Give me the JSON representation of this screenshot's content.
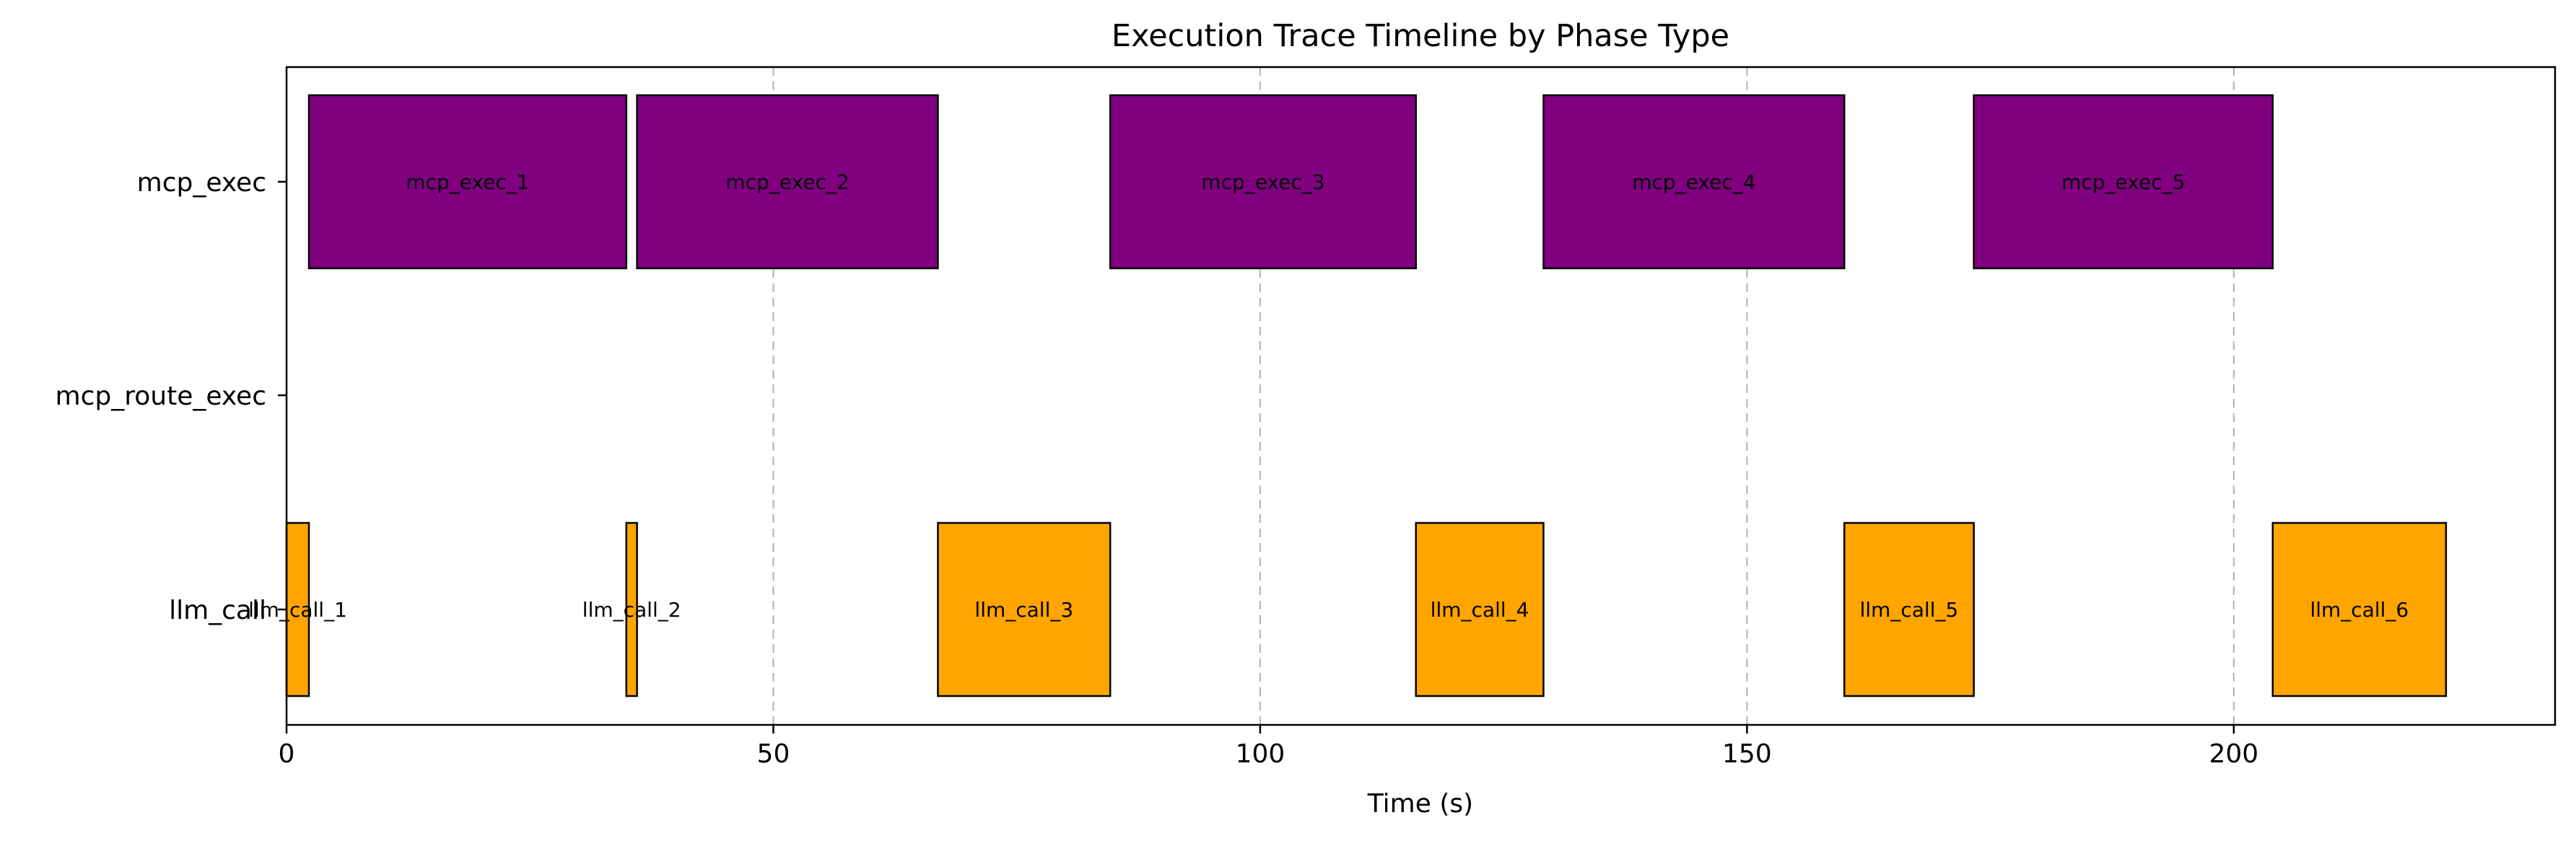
{
  "chart_data": {
    "type": "gantt",
    "title": "Execution Trace Timeline by Phase Type",
    "xlabel": "Time (s)",
    "ylabel": "",
    "xlim": [
      0,
      233
    ],
    "xticks": [
      0,
      50,
      100,
      150,
      200
    ],
    "grid": "vertical dashed",
    "categories": [
      "mcp_exec",
      "mcp_route_exec",
      "llm_call"
    ],
    "colors": {
      "mcp_exec": "#800080",
      "llm_call": "#FFA500"
    },
    "bars": [
      {
        "label": "mcp_exec_1",
        "category": "mcp_exec",
        "start": 2.3,
        "end": 34.9
      },
      {
        "label": "mcp_exec_2",
        "category": "mcp_exec",
        "start": 36.0,
        "end": 66.9
      },
      {
        "label": "mcp_exec_3",
        "category": "mcp_exec",
        "start": 84.6,
        "end": 116.0
      },
      {
        "label": "mcp_exec_4",
        "category": "mcp_exec",
        "start": 129.1,
        "end": 160.0
      },
      {
        "label": "mcp_exec_5",
        "category": "mcp_exec",
        "start": 173.3,
        "end": 204.0
      },
      {
        "label": "llm_call_1",
        "category": "llm_call",
        "start": 0.0,
        "end": 2.3
      },
      {
        "label": "llm_call_2",
        "category": "llm_call",
        "start": 34.9,
        "end": 36.0
      },
      {
        "label": "llm_call_3",
        "category": "llm_call",
        "start": 66.9,
        "end": 84.6
      },
      {
        "label": "llm_call_4",
        "category": "llm_call",
        "start": 116.0,
        "end": 129.1
      },
      {
        "label": "llm_call_5",
        "category": "llm_call",
        "start": 160.0,
        "end": 173.3
      },
      {
        "label": "llm_call_6",
        "category": "llm_call",
        "start": 204.0,
        "end": 221.8
      }
    ]
  }
}
